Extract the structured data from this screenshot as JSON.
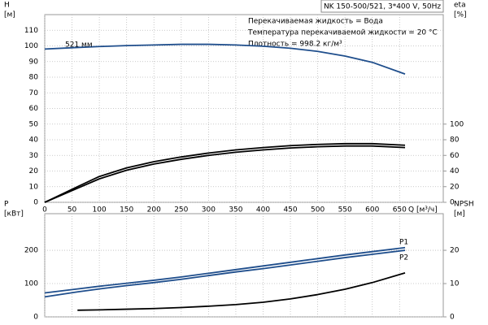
{
  "header": "NK 150-500/521, 3*400 V, 50Hz",
  "chart_data": [
    {
      "type": "line",
      "ylabel": [
        "H",
        "[м]"
      ],
      "y2label": [
        "eta",
        "[%]"
      ],
      "xlabel": "Q [м³/ч]",
      "annotations": [
        "Перекачиваемая жидкость = Вода",
        "Температура перекачиваемой жидкости = 20 °C",
        "Плотность = 998.2 кг/м³"
      ],
      "xlim": [
        0,
        730
      ],
      "xticks": [
        0,
        50,
        100,
        150,
        200,
        250,
        300,
        350,
        400,
        450,
        500,
        550,
        600,
        650
      ],
      "ylim": [
        0,
        120
      ],
      "yticks": [
        0,
        10,
        20,
        30,
        40,
        50,
        60,
        70,
        80,
        90,
        100,
        110
      ],
      "y2lim": [
        0,
        240
      ],
      "y2ticks": [
        0,
        20,
        40,
        60,
        80,
        100
      ],
      "grid": true,
      "xtick_labels": true,
      "x": [
        0,
        60,
        100,
        150,
        200,
        250,
        300,
        350,
        400,
        450,
        500,
        550,
        600,
        660
      ],
      "series": [
        {
          "name": "521 мм",
          "color": "#1f4e8c",
          "values": [
            98,
            99,
            99.6,
            100.2,
            100.6,
            101,
            101,
            100.6,
            99.8,
            98.5,
            96.5,
            93.5,
            89.5,
            82
          ]
        },
        {
          "color": "#000000",
          "axis": "y2",
          "values": [
            0,
            20,
            33,
            44,
            52,
            58,
            63,
            67,
            70,
            72.5,
            74,
            75,
            75,
            73
          ]
        },
        {
          "color": "#000000",
          "axis": "y2",
          "values": [
            0,
            18,
            30,
            41,
            49,
            55,
            60,
            64,
            67,
            69.5,
            71,
            72,
            72,
            70
          ]
        }
      ]
    },
    {
      "type": "line",
      "ylabel": [
        "P",
        "[кВт]"
      ],
      "y2label": [
        "NPSH",
        "[м]"
      ],
      "xlim": [
        0,
        730
      ],
      "xticks": [
        0,
        50,
        100,
        150,
        200,
        250,
        300,
        350,
        400,
        450,
        500,
        550,
        600,
        650
      ],
      "ylim": [
        0,
        310
      ],
      "yticks": [
        0,
        100,
        200
      ],
      "y2lim": [
        0,
        31
      ],
      "y2ticks": [
        0,
        10,
        20
      ],
      "grid": true,
      "xtick_labels": false,
      "x": [
        0,
        60,
        100,
        150,
        200,
        250,
        300,
        350,
        400,
        450,
        500,
        550,
        600,
        660
      ],
      "series": [
        {
          "name": "P1",
          "color": "#1f4e8c",
          "values": [
            72,
            84,
            92,
            101,
            110,
            120,
            131,
            142,
            153,
            164,
            175,
            186,
            196,
            208
          ]
        },
        {
          "name": "P2",
          "color": "#1f4e8c",
          "values": [
            60,
            75,
            84,
            94,
            103,
            113,
            124,
            135,
            145,
            156,
            167,
            178,
            188,
            200
          ]
        },
        {
          "color": "#000000",
          "axis": "y2",
          "values": [
            null,
            2.0,
            2.1,
            2.3,
            2.5,
            2.8,
            3.2,
            3.7,
            4.4,
            5.4,
            6.7,
            8.3,
            10.3,
            13.2
          ]
        }
      ]
    }
  ]
}
